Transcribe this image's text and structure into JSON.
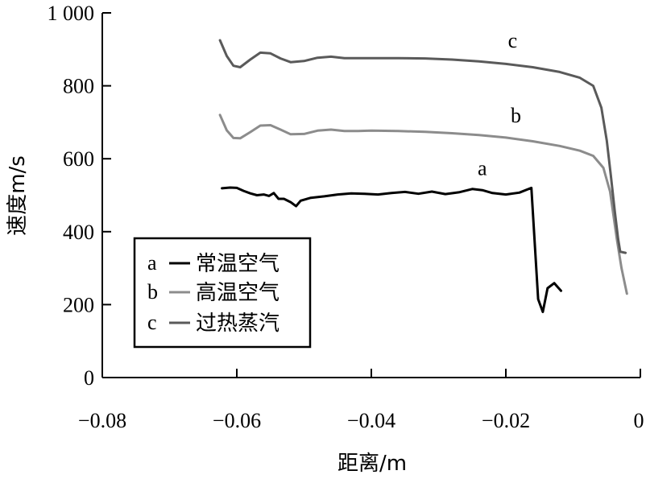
{
  "chart_data": {
    "type": "line",
    "title": "",
    "xlabel": "距离/m",
    "ylabel": "速度m/s",
    "xlim": [
      -0.08,
      0
    ],
    "ylim": [
      0,
      1000
    ],
    "x_ticks": [
      -0.08,
      -0.06,
      -0.04,
      -0.02,
      0
    ],
    "x_tick_labels": [
      "−0.08",
      "−0.06",
      "−0.04",
      "−0.02",
      "0"
    ],
    "y_ticks": [
      0,
      200,
      400,
      600,
      800,
      1000
    ],
    "y_tick_labels": [
      "0",
      "200",
      "400",
      "600",
      "800",
      "1 000"
    ],
    "grid": false,
    "legend_position": "bottom-left",
    "series": [
      {
        "name": "常温空气",
        "letter": "a",
        "color": "#000000",
        "points": [
          [
            -0.0622,
            519
          ],
          [
            -0.061,
            521
          ],
          [
            -0.06,
            520
          ],
          [
            -0.059,
            512
          ],
          [
            -0.058,
            505
          ],
          [
            -0.057,
            500
          ],
          [
            -0.056,
            502
          ],
          [
            -0.0552,
            498
          ],
          [
            -0.0545,
            506
          ],
          [
            -0.0538,
            490
          ],
          [
            -0.053,
            490
          ],
          [
            -0.052,
            481
          ],
          [
            -0.0512,
            470
          ],
          [
            -0.0505,
            485
          ],
          [
            -0.049,
            493
          ],
          [
            -0.047,
            497
          ],
          [
            -0.045,
            502
          ],
          [
            -0.043,
            505
          ],
          [
            -0.041,
            504
          ],
          [
            -0.039,
            502
          ],
          [
            -0.037,
            506
          ],
          [
            -0.035,
            509
          ],
          [
            -0.033,
            504
          ],
          [
            -0.031,
            510
          ],
          [
            -0.029,
            503
          ],
          [
            -0.027,
            508
          ],
          [
            -0.025,
            517
          ],
          [
            -0.0235,
            514
          ],
          [
            -0.022,
            506
          ],
          [
            -0.02,
            502
          ],
          [
            -0.018,
            507
          ],
          [
            -0.0162,
            520
          ],
          [
            -0.0152,
            215
          ],
          [
            -0.0145,
            180
          ],
          [
            -0.0138,
            245
          ],
          [
            -0.0128,
            259
          ],
          [
            -0.0118,
            238
          ]
        ]
      },
      {
        "name": "高温空气",
        "letter": "b",
        "color": "#8c8c8c",
        "points": [
          [
            -0.0625,
            720
          ],
          [
            -0.0615,
            678
          ],
          [
            -0.0605,
            657
          ],
          [
            -0.0595,
            656
          ],
          [
            -0.058,
            673
          ],
          [
            -0.0565,
            691
          ],
          [
            -0.055,
            692
          ],
          [
            -0.0535,
            680
          ],
          [
            -0.052,
            667
          ],
          [
            -0.05,
            668
          ],
          [
            -0.048,
            677
          ],
          [
            -0.046,
            680
          ],
          [
            -0.044,
            676
          ],
          [
            -0.042,
            676
          ],
          [
            -0.04,
            677
          ],
          [
            -0.036,
            676
          ],
          [
            -0.032,
            674
          ],
          [
            -0.028,
            670
          ],
          [
            -0.024,
            665
          ],
          [
            -0.02,
            658
          ],
          [
            -0.016,
            648
          ],
          [
            -0.012,
            635
          ],
          [
            -0.009,
            622
          ],
          [
            -0.007,
            608
          ],
          [
            -0.0055,
            575
          ],
          [
            -0.0045,
            510
          ],
          [
            -0.004,
            445
          ],
          [
            -0.0035,
            380
          ],
          [
            -0.0028,
            300
          ],
          [
            -0.002,
            230
          ]
        ]
      },
      {
        "name": "过热蒸汽",
        "letter": "c",
        "color": "#5a5a5a",
        "points": [
          [
            -0.0625,
            925
          ],
          [
            -0.0615,
            882
          ],
          [
            -0.0605,
            855
          ],
          [
            -0.0595,
            851
          ],
          [
            -0.058,
            872
          ],
          [
            -0.0565,
            891
          ],
          [
            -0.055,
            889
          ],
          [
            -0.0535,
            875
          ],
          [
            -0.052,
            865
          ],
          [
            -0.05,
            868
          ],
          [
            -0.048,
            877
          ],
          [
            -0.046,
            880
          ],
          [
            -0.044,
            876
          ],
          [
            -0.042,
            876
          ],
          [
            -0.04,
            876
          ],
          [
            -0.036,
            876
          ],
          [
            -0.032,
            875
          ],
          [
            -0.028,
            872
          ],
          [
            -0.024,
            867
          ],
          [
            -0.02,
            860
          ],
          [
            -0.016,
            851
          ],
          [
            -0.012,
            838
          ],
          [
            -0.009,
            822
          ],
          [
            -0.007,
            800
          ],
          [
            -0.0058,
            740
          ],
          [
            -0.005,
            650
          ],
          [
            -0.0044,
            555
          ],
          [
            -0.0038,
            455
          ],
          [
            -0.0033,
            380
          ],
          [
            -0.003,
            345
          ],
          [
            -0.0022,
            342
          ]
        ]
      }
    ],
    "curve_labels": [
      {
        "text": "c",
        "x": -0.019,
        "y": 905
      },
      {
        "text": "b",
        "x": -0.0185,
        "y": 700
      },
      {
        "text": "a",
        "x": -0.0235,
        "y": 555
      }
    ]
  }
}
